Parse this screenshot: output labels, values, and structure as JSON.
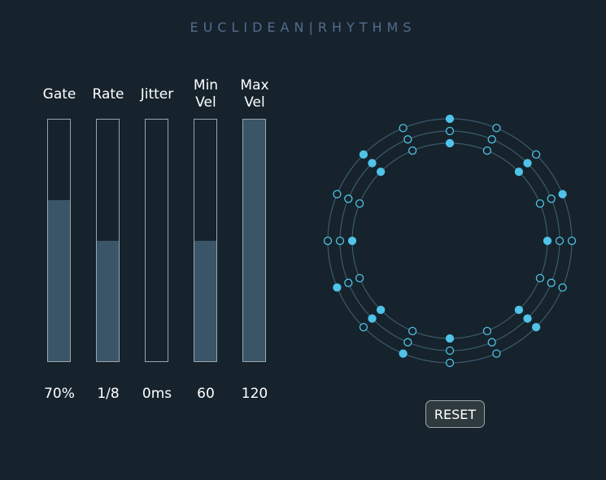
{
  "title": "EUCLIDEAN|RHYTHMS",
  "sliders": [
    {
      "label": "Gate",
      "value": "70%",
      "level": 0.667
    },
    {
      "label": "Rate",
      "value": "1/8",
      "level": 0.5
    },
    {
      "label": "Jitter",
      "value": "0ms",
      "level": 0
    },
    {
      "label": "Min\nVel",
      "value": "60",
      "level": 0.5
    },
    {
      "label": "Max\nVel",
      "value": "120",
      "level": 1
    }
  ],
  "reset_label": "RESET",
  "colors": {
    "background": "#16232c",
    "ring": "#3c5a6b",
    "step": "#4fc3e8",
    "fill": "#3a5568"
  },
  "rings": [
    {
      "steps": 16,
      "active": [
        0,
        2,
        4,
        6,
        8,
        10,
        12,
        14
      ]
    },
    {
      "steps": 16,
      "active": [
        2,
        6,
        10,
        14
      ]
    },
    {
      "steps": 16,
      "active": [
        0,
        3,
        6,
        9,
        11,
        14
      ]
    }
  ]
}
